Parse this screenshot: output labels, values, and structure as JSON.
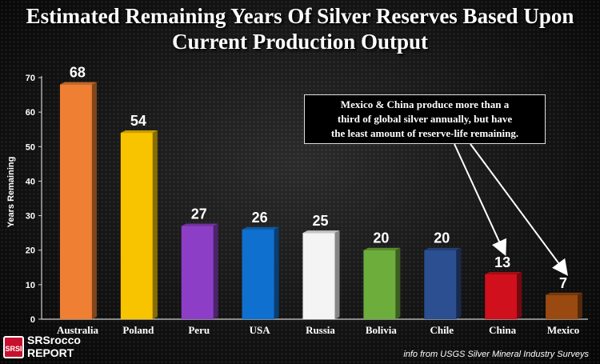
{
  "chart_data": {
    "type": "bar",
    "title_line1": "Estimated Remaining Years Of Silver Reserves Based Upon",
    "title_line2": "Current Production Output",
    "ylabel": "Years Remaining",
    "xlabel": "",
    "ylim": [
      0,
      70
    ],
    "yticks": [
      0,
      10,
      20,
      30,
      40,
      50,
      60,
      70
    ],
    "categories": [
      "Australia",
      "Poland",
      "Peru",
      "USA",
      "Russia",
      "Bolivia",
      "Chile",
      "China",
      "Mexico"
    ],
    "values": [
      68,
      54,
      27,
      26,
      25,
      20,
      20,
      13,
      7
    ],
    "value_labels": [
      "68",
      "54",
      "27",
      "26",
      "25",
      "20",
      "20",
      "13",
      "7"
    ],
    "colors": [
      "#ef7f33",
      "#f8c400",
      "#8c3fc6",
      "#1070d0",
      "#f4f4f4",
      "#6dad3c",
      "#2b4f90",
      "#d0101c",
      "#9a4a10"
    ],
    "grid": false,
    "legend": "none",
    "annotation": {
      "lines": [
        "Mexico & China produce more than a",
        "third of global silver annually, but have",
        "the least amount of reserve-life remaining."
      ],
      "points_to": [
        "China",
        "Mexico"
      ]
    }
  },
  "branding": {
    "badge": "SRSI",
    "name": "SRSrocco",
    "sub": "REPORT"
  },
  "source": "info from USGS Silver Mineral Industry Surveys"
}
